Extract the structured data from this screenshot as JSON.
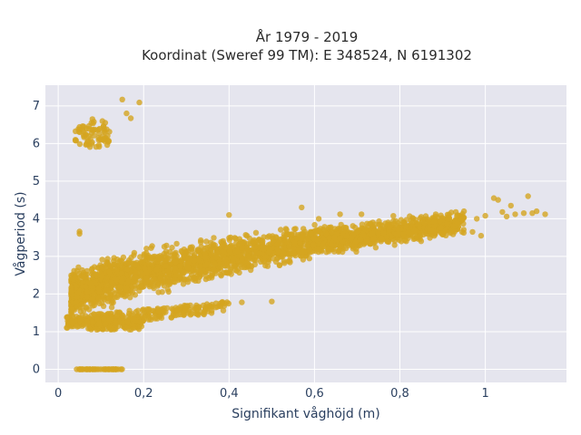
{
  "chart_data": {
    "type": "scatter",
    "title_line1": "År 1979 - 2019",
    "title_line2": "Koordinat (Sweref 99 TM): E 348524, N 6191302",
    "xlabel": "Signifikant våghöjd (m)",
    "ylabel": "Vågperiod (s)",
    "xlim": [
      -0.03,
      1.19
    ],
    "ylim": [
      -0.35,
      7.55
    ],
    "x_ticks": [
      {
        "value": 0,
        "label": "0"
      },
      {
        "value": 0.2,
        "label": "0,2"
      },
      {
        "value": 0.4,
        "label": "0,4"
      },
      {
        "value": 0.6,
        "label": "0,6"
      },
      {
        "value": 0.8,
        "label": "0,8"
      },
      {
        "value": 1,
        "label": "1"
      }
    ],
    "y_ticks": [
      {
        "value": 0,
        "label": "0"
      },
      {
        "value": 1,
        "label": "1"
      },
      {
        "value": 2,
        "label": "2"
      },
      {
        "value": 3,
        "label": "3"
      },
      {
        "value": 4,
        "label": "4"
      },
      {
        "value": 5,
        "label": "5"
      },
      {
        "value": 6,
        "label": "6"
      },
      {
        "value": 7,
        "label": "7"
      }
    ],
    "grid": true,
    "marker_color": "#d4a520",
    "plot_bg": "#e5e5ee",
    "clusters": [
      {
        "x_range": [
          0.03,
          0.15
        ],
        "y": 0.0
      },
      {
        "x_range": [
          0.04,
          0.12
        ],
        "y_range": [
          5.9,
          6.6
        ]
      },
      {
        "x_range": [
          0.07,
          0.2
        ],
        "y_range": [
          1.05,
          1.35
        ]
      },
      {
        "x_range": [
          0.02,
          0.4
        ],
        "y_range": [
          1.2,
          1.8
        ],
        "trend": "t * 1.0"
      },
      {
        "x_range": [
          0.03,
          0.95
        ],
        "y_range_at_start": [
          1.6,
          2.6
        ],
        "y_range_at_end": [
          3.7,
          4.2
        ]
      }
    ],
    "points": [
      {
        "x": 0.05,
        "y": 3.6
      },
      {
        "x": 0.05,
        "y": 3.66
      },
      {
        "x": 0.15,
        "y": 7.17
      },
      {
        "x": 0.19,
        "y": 7.09
      },
      {
        "x": 0.16,
        "y": 6.8
      },
      {
        "x": 0.17,
        "y": 6.67
      },
      {
        "x": 0.06,
        "y": 6.45
      },
      {
        "x": 0.08,
        "y": 6.65
      },
      {
        "x": 0.11,
        "y": 6.55
      },
      {
        "x": 0.1,
        "y": 6.1
      },
      {
        "x": 0.28,
        "y": 1.6
      },
      {
        "x": 0.3,
        "y": 1.65
      },
      {
        "x": 0.34,
        "y": 1.7
      },
      {
        "x": 0.36,
        "y": 1.72
      },
      {
        "x": 0.39,
        "y": 1.75
      },
      {
        "x": 0.43,
        "y": 1.78
      },
      {
        "x": 0.5,
        "y": 1.8
      },
      {
        "x": 0.4,
        "y": 4.1
      },
      {
        "x": 0.57,
        "y": 4.3
      },
      {
        "x": 0.61,
        "y": 4.0
      },
      {
        "x": 0.66,
        "y": 4.12
      },
      {
        "x": 0.71,
        "y": 4.12
      },
      {
        "x": 0.85,
        "y": 4.05
      },
      {
        "x": 0.88,
        "y": 3.92
      },
      {
        "x": 0.95,
        "y": 4.2
      },
      {
        "x": 0.98,
        "y": 4.0
      },
      {
        "x": 1.0,
        "y": 4.08
      },
      {
        "x": 1.02,
        "y": 4.55
      },
      {
        "x": 1.03,
        "y": 4.5
      },
      {
        "x": 1.04,
        "y": 4.18
      },
      {
        "x": 1.05,
        "y": 4.06
      },
      {
        "x": 1.06,
        "y": 4.35
      },
      {
        "x": 1.07,
        "y": 4.12
      },
      {
        "x": 1.09,
        "y": 4.15
      },
      {
        "x": 1.1,
        "y": 4.6
      },
      {
        "x": 1.11,
        "y": 4.15
      },
      {
        "x": 1.12,
        "y": 4.2
      },
      {
        "x": 1.14,
        "y": 4.12
      },
      {
        "x": 0.93,
        "y": 3.8
      },
      {
        "x": 0.97,
        "y": 3.65
      },
      {
        "x": 0.99,
        "y": 3.55
      }
    ]
  }
}
